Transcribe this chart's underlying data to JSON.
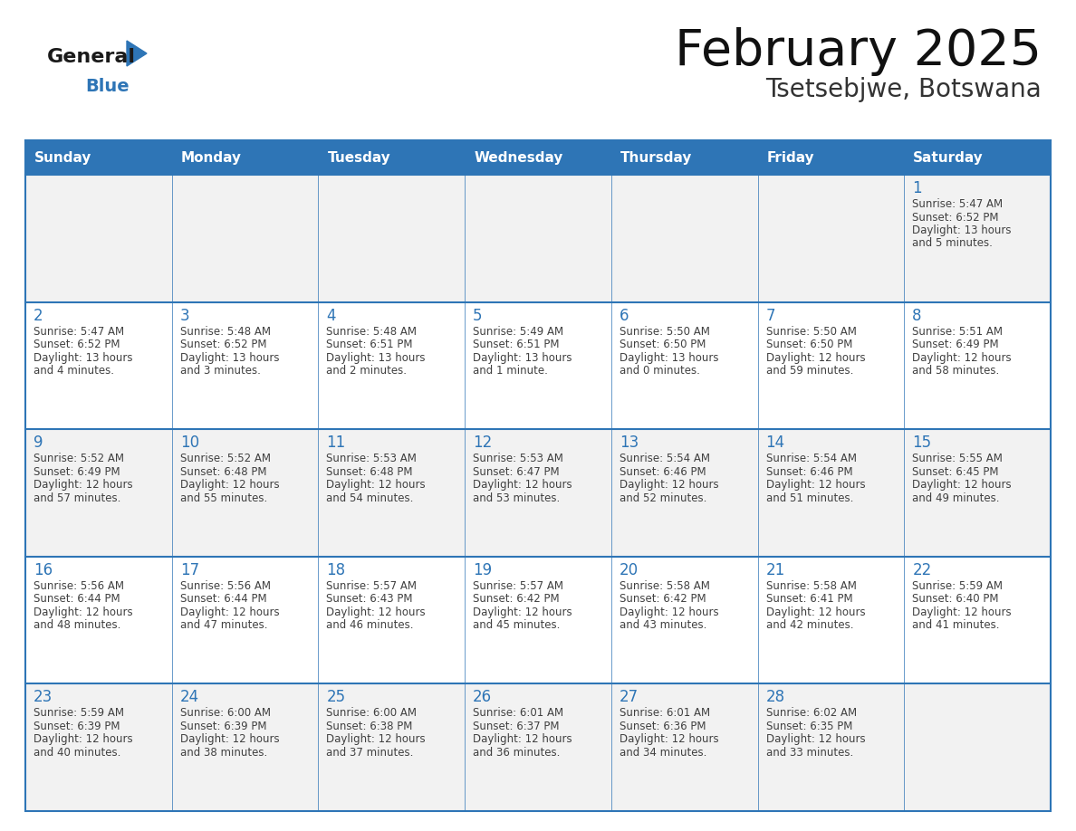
{
  "title": "February 2025",
  "subtitle": "Tsetsebjwe, Botswana",
  "days_of_week": [
    "Sunday",
    "Monday",
    "Tuesday",
    "Wednesday",
    "Thursday",
    "Friday",
    "Saturday"
  ],
  "header_bg": "#2E75B6",
  "header_text_color": "#FFFFFF",
  "cell_bg_odd": "#F2F2F2",
  "cell_bg_even": "#FFFFFF",
  "border_color": "#2E75B6",
  "day_number_color": "#2E75B6",
  "text_color": "#404040",
  "logo_general_color": "#1a1a1a",
  "logo_blue_color": "#2E75B6",
  "calendar_data": [
    [
      null,
      null,
      null,
      null,
      null,
      null,
      {
        "day": 1,
        "sunrise": "5:47 AM",
        "sunset": "6:52 PM",
        "daylight_hours": 13,
        "daylight_minutes": 5
      }
    ],
    [
      {
        "day": 2,
        "sunrise": "5:47 AM",
        "sunset": "6:52 PM",
        "daylight_hours": 13,
        "daylight_minutes": 4
      },
      {
        "day": 3,
        "sunrise": "5:48 AM",
        "sunset": "6:52 PM",
        "daylight_hours": 13,
        "daylight_minutes": 3
      },
      {
        "day": 4,
        "sunrise": "5:48 AM",
        "sunset": "6:51 PM",
        "daylight_hours": 13,
        "daylight_minutes": 2
      },
      {
        "day": 5,
        "sunrise": "5:49 AM",
        "sunset": "6:51 PM",
        "daylight_hours": 13,
        "daylight_minutes": 1
      },
      {
        "day": 6,
        "sunrise": "5:50 AM",
        "sunset": "6:50 PM",
        "daylight_hours": 13,
        "daylight_minutes": 0
      },
      {
        "day": 7,
        "sunrise": "5:50 AM",
        "sunset": "6:50 PM",
        "daylight_hours": 12,
        "daylight_minutes": 59
      },
      {
        "day": 8,
        "sunrise": "5:51 AM",
        "sunset": "6:49 PM",
        "daylight_hours": 12,
        "daylight_minutes": 58
      }
    ],
    [
      {
        "day": 9,
        "sunrise": "5:52 AM",
        "sunset": "6:49 PM",
        "daylight_hours": 12,
        "daylight_minutes": 57
      },
      {
        "day": 10,
        "sunrise": "5:52 AM",
        "sunset": "6:48 PM",
        "daylight_hours": 12,
        "daylight_minutes": 55
      },
      {
        "day": 11,
        "sunrise": "5:53 AM",
        "sunset": "6:48 PM",
        "daylight_hours": 12,
        "daylight_minutes": 54
      },
      {
        "day": 12,
        "sunrise": "5:53 AM",
        "sunset": "6:47 PM",
        "daylight_hours": 12,
        "daylight_minutes": 53
      },
      {
        "day": 13,
        "sunrise": "5:54 AM",
        "sunset": "6:46 PM",
        "daylight_hours": 12,
        "daylight_minutes": 52
      },
      {
        "day": 14,
        "sunrise": "5:54 AM",
        "sunset": "6:46 PM",
        "daylight_hours": 12,
        "daylight_minutes": 51
      },
      {
        "day": 15,
        "sunrise": "5:55 AM",
        "sunset": "6:45 PM",
        "daylight_hours": 12,
        "daylight_minutes": 49
      }
    ],
    [
      {
        "day": 16,
        "sunrise": "5:56 AM",
        "sunset": "6:44 PM",
        "daylight_hours": 12,
        "daylight_minutes": 48
      },
      {
        "day": 17,
        "sunrise": "5:56 AM",
        "sunset": "6:44 PM",
        "daylight_hours": 12,
        "daylight_minutes": 47
      },
      {
        "day": 18,
        "sunrise": "5:57 AM",
        "sunset": "6:43 PM",
        "daylight_hours": 12,
        "daylight_minutes": 46
      },
      {
        "day": 19,
        "sunrise": "5:57 AM",
        "sunset": "6:42 PM",
        "daylight_hours": 12,
        "daylight_minutes": 45
      },
      {
        "day": 20,
        "sunrise": "5:58 AM",
        "sunset": "6:42 PM",
        "daylight_hours": 12,
        "daylight_minutes": 43
      },
      {
        "day": 21,
        "sunrise": "5:58 AM",
        "sunset": "6:41 PM",
        "daylight_hours": 12,
        "daylight_minutes": 42
      },
      {
        "day": 22,
        "sunrise": "5:59 AM",
        "sunset": "6:40 PM",
        "daylight_hours": 12,
        "daylight_minutes": 41
      }
    ],
    [
      {
        "day": 23,
        "sunrise": "5:59 AM",
        "sunset": "6:39 PM",
        "daylight_hours": 12,
        "daylight_minutes": 40
      },
      {
        "day": 24,
        "sunrise": "6:00 AM",
        "sunset": "6:39 PM",
        "daylight_hours": 12,
        "daylight_minutes": 38
      },
      {
        "day": 25,
        "sunrise": "6:00 AM",
        "sunset": "6:38 PM",
        "daylight_hours": 12,
        "daylight_minutes": 37
      },
      {
        "day": 26,
        "sunrise": "6:01 AM",
        "sunset": "6:37 PM",
        "daylight_hours": 12,
        "daylight_minutes": 36
      },
      {
        "day": 27,
        "sunrise": "6:01 AM",
        "sunset": "6:36 PM",
        "daylight_hours": 12,
        "daylight_minutes": 34
      },
      {
        "day": 28,
        "sunrise": "6:02 AM",
        "sunset": "6:35 PM",
        "daylight_hours": 12,
        "daylight_minutes": 33
      },
      null
    ]
  ]
}
